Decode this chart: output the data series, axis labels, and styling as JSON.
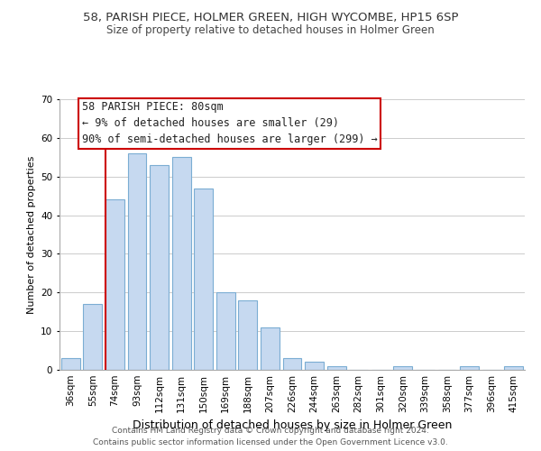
{
  "title": "58, PARISH PIECE, HOLMER GREEN, HIGH WYCOMBE, HP15 6SP",
  "subtitle": "Size of property relative to detached houses in Holmer Green",
  "xlabel": "Distribution of detached houses by size in Holmer Green",
  "ylabel": "Number of detached properties",
  "footer_lines": [
    "Contains HM Land Registry data © Crown copyright and database right 2024.",
    "Contains public sector information licensed under the Open Government Licence v3.0."
  ],
  "bin_labels": [
    "36sqm",
    "55sqm",
    "74sqm",
    "93sqm",
    "112sqm",
    "131sqm",
    "150sqm",
    "169sqm",
    "188sqm",
    "207sqm",
    "226sqm",
    "244sqm",
    "263sqm",
    "282sqm",
    "301sqm",
    "320sqm",
    "339sqm",
    "358sqm",
    "377sqm",
    "396sqm",
    "415sqm"
  ],
  "bar_heights": [
    3,
    17,
    44,
    56,
    53,
    55,
    47,
    20,
    18,
    11,
    3,
    2,
    1,
    0,
    0,
    1,
    0,
    0,
    1,
    0,
    1
  ],
  "bar_color": "#c6d9f0",
  "bar_edge_color": "#7badd3",
  "vline_x_index": 2,
  "vline_color": "#cc0000",
  "annotation_line1": "58 PARISH PIECE: 80sqm",
  "annotation_line2": "← 9% of detached houses are smaller (29)",
  "annotation_line3": "90% of semi-detached houses are larger (299) →",
  "ylim": [
    0,
    70
  ],
  "yticks": [
    0,
    10,
    20,
    30,
    40,
    50,
    60,
    70
  ],
  "background_color": "#ffffff",
  "grid_color": "#cccccc",
  "title_fontsize": 9.5,
  "subtitle_fontsize": 8.5,
  "xlabel_fontsize": 9,
  "ylabel_fontsize": 8,
  "tick_fontsize": 7.5,
  "footer_fontsize": 6.5,
  "ann_fontsize": 8.5
}
